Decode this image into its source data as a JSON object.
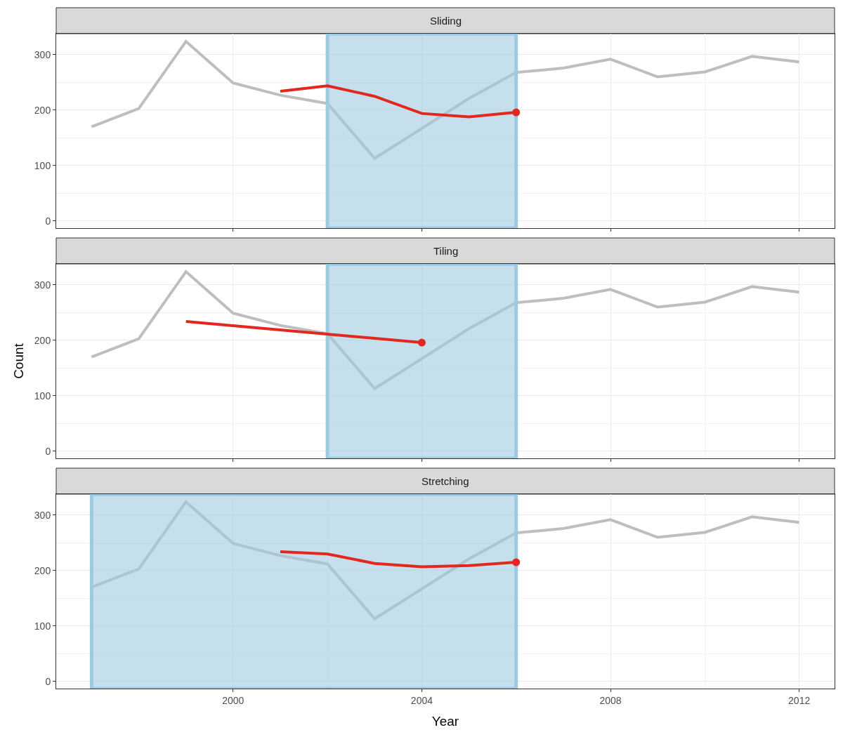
{
  "chart_data": [
    {
      "type": "line",
      "title": "Sliding",
      "xlim": [
        1996.25,
        2012.75
      ],
      "xticks": [
        2000,
        2004,
        2008,
        2012
      ],
      "ylim": [
        -13,
        338
      ],
      "yticks": [
        0,
        100,
        200,
        300
      ],
      "grid": true,
      "tick_labels": "y",
      "series": [
        {
          "color": "#bebebe",
          "x": [
            1997,
            1998,
            1999,
            2000,
            2001,
            2002,
            2003,
            2004,
            2005,
            2006,
            2007,
            2008,
            2009,
            2010,
            2011,
            2012
          ],
          "values": [
            170,
            203,
            324,
            249,
            227,
            212,
            113,
            167,
            221,
            268,
            276,
            292,
            260,
            269,
            297,
            287
          ]
        },
        {
          "color": "#e3271f",
          "x": [
            2001,
            2002,
            2003,
            2004,
            2005,
            2006
          ],
          "values": [
            234,
            244,
            225,
            194,
            188,
            196
          ]
        },
        {
          "type": "scatter",
          "marker": "circle",
          "color": "#e3271f",
          "x": [
            2006
          ],
          "values": [
            196
          ]
        }
      ],
      "bands": [
        {
          "axis": "x",
          "from": 2002,
          "to": 2006,
          "color": "#9ecae1"
        }
      ]
    },
    {
      "type": "line",
      "title": "Tiling",
      "ylabel": "Count",
      "xlim": [
        1996.25,
        2012.75
      ],
      "xticks": [
        2000,
        2004,
        2008,
        2012
      ],
      "ylim": [
        -13,
        338
      ],
      "yticks": [
        0,
        100,
        200,
        300
      ],
      "grid": true,
      "tick_labels": "y",
      "series": [
        {
          "color": "#bebebe",
          "x": [
            1997,
            1998,
            1999,
            2000,
            2001,
            2002,
            2003,
            2004,
            2005,
            2006,
            2007,
            2008,
            2009,
            2010,
            2011,
            2012
          ],
          "values": [
            170,
            203,
            324,
            249,
            227,
            212,
            113,
            167,
            221,
            268,
            276,
            292,
            260,
            269,
            297,
            287
          ]
        },
        {
          "color": "#e3271f",
          "x": [
            1999,
            2004
          ],
          "values": [
            234,
            196
          ]
        },
        {
          "type": "scatter",
          "marker": "circle",
          "color": "#e3271f",
          "x": [
            2004
          ],
          "values": [
            196
          ]
        }
      ],
      "bands": [
        {
          "axis": "x",
          "from": 2002,
          "to": 2006,
          "color": "#9ecae1"
        }
      ]
    },
    {
      "type": "line",
      "title": "Stretching",
      "xlabel": "Year",
      "xlim": [
        1996.25,
        2012.75
      ],
      "xticks": [
        2000,
        2004,
        2008,
        2012
      ],
      "ylim": [
        -13,
        338
      ],
      "yticks": [
        0,
        100,
        200,
        300
      ],
      "grid": true,
      "series": [
        {
          "color": "#bebebe",
          "x": [
            1997,
            1998,
            1999,
            2000,
            2001,
            2002,
            2003,
            2004,
            2005,
            2006,
            2007,
            2008,
            2009,
            2010,
            2011,
            2012
          ],
          "values": [
            170,
            203,
            324,
            249,
            227,
            212,
            113,
            167,
            221,
            268,
            276,
            292,
            260,
            269,
            297,
            287
          ]
        },
        {
          "color": "#e3271f",
          "x": [
            2001,
            2002,
            2003,
            2004,
            2005,
            2006
          ],
          "values": [
            234,
            230,
            213,
            207,
            209,
            215
          ]
        },
        {
          "type": "scatter",
          "marker": "circle",
          "color": "#e3271f",
          "x": [
            2006
          ],
          "values": [
            215
          ]
        }
      ],
      "bands": [
        {
          "axis": "x",
          "from": 1997,
          "to": 2006,
          "color": "#9ecae1"
        }
      ]
    }
  ]
}
